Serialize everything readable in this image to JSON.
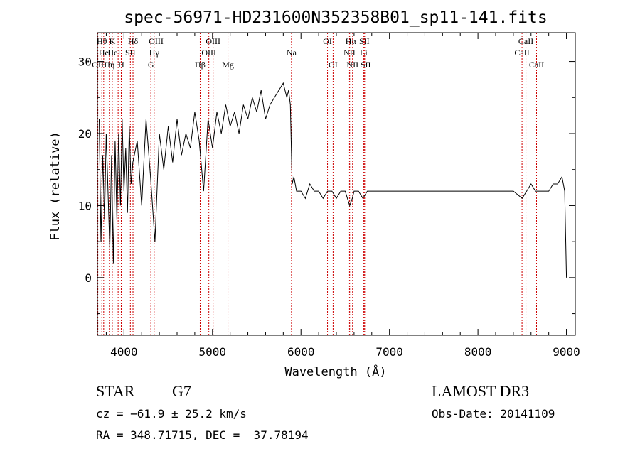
{
  "chart_data": {
    "type": "line",
    "title": "spec-56971-HD231600N352358B01_sp11-141.fits",
    "xlabel": "Wavelength (Å)",
    "ylabel": "Flux (relative)",
    "xlim": [
      3700,
      9100
    ],
    "ylim": [
      -8,
      34
    ],
    "xticks": [
      {
        "value": 4000,
        "label": "4000"
      },
      {
        "value": 5000,
        "label": "5000"
      },
      {
        "value": 6000,
        "label": "6000"
      },
      {
        "value": 7000,
        "label": "7000"
      },
      {
        "value": 8000,
        "label": "8000"
      },
      {
        "value": 9000,
        "label": "9000"
      }
    ],
    "yticks": [
      {
        "value": 0,
        "label": "0"
      },
      {
        "value": 10,
        "label": "10"
      },
      {
        "value": 20,
        "label": "20"
      },
      {
        "value": 30,
        "label": "30"
      }
    ],
    "line_color": "#000000",
    "marker_color": "#cc0000",
    "series": [
      {
        "x": [
          3720,
          3740,
          3760,
          3780,
          3800,
          3820,
          3840,
          3860,
          3880,
          3900,
          3920,
          3940,
          3960,
          3980,
          4000,
          4020,
          4040,
          4060,
          4080,
          4100,
          4150,
          4200,
          4250,
          4300,
          4350,
          4400,
          4450,
          4500,
          4550,
          4600,
          4650,
          4700,
          4750,
          4800,
          4850,
          4900,
          4950,
          5000,
          5050,
          5100,
          5150,
          5200,
          5250,
          5300,
          5350,
          5400,
          5450,
          5500,
          5550,
          5600,
          5650,
          5700,
          5750,
          5800,
          5820,
          5840,
          5860,
          5880,
          5900,
          5920,
          5950,
          6000,
          6050,
          6100,
          6150,
          6200,
          6250,
          6300,
          6350,
          6400,
          6450,
          6500,
          6550,
          6580,
          6600,
          6650,
          6700,
          6750,
          6800,
          6850,
          6900,
          6950,
          7000,
          7100,
          7200,
          7300,
          7400,
          7500,
          7600,
          7700,
          7800,
          7900,
          8000,
          8100,
          8200,
          8300,
          8400,
          8500,
          8550,
          8600,
          8650,
          8700,
          8750,
          8800,
          8850,
          8900,
          8950,
          8980,
          9000
        ],
        "y": [
          22,
          5,
          17,
          8,
          20,
          12,
          4,
          17,
          2,
          19,
          8,
          20,
          10,
          22,
          12,
          18,
          9,
          21,
          13,
          16,
          19,
          10,
          22,
          14,
          5,
          20,
          15,
          21,
          16,
          22,
          17,
          20,
          18,
          23,
          19,
          12,
          22,
          18,
          23,
          20,
          24,
          21,
          23,
          20,
          24,
          22,
          25,
          23,
          26,
          22,
          24,
          25,
          26,
          27,
          26,
          25,
          26,
          24,
          13,
          14,
          12,
          12,
          11,
          13,
          12,
          12,
          11,
          12,
          12,
          11,
          12,
          12,
          10,
          11,
          12,
          12,
          11,
          12,
          12,
          12,
          12,
          12,
          12,
          12,
          12,
          12,
          12,
          12,
          12,
          12,
          12,
          12,
          12,
          12,
          12,
          12,
          12,
          11,
          12,
          13,
          12,
          12,
          12,
          12,
          13,
          13,
          14,
          12,
          0
        ]
      }
    ],
    "line_markers": [
      {
        "wl": 3705,
        "label": "OII",
        "row": 3
      },
      {
        "wl": 3750,
        "label": "Hθ",
        "row": 1
      },
      {
        "wl": 3771,
        "label": "He",
        "row": 2
      },
      {
        "wl": 3835,
        "label": "Hη",
        "row": 3
      },
      {
        "wl": 3868,
        "label": "K",
        "row": 1
      },
      {
        "wl": 3889,
        "label": "HeI",
        "row": 2
      },
      {
        "wl": 3934,
        "label": "",
        "row": 0
      },
      {
        "wl": 3969,
        "label": "H",
        "row": 3
      },
      {
        "wl": 4072,
        "label": "SII",
        "row": 2
      },
      {
        "wl": 4102,
        "label": "Hδ",
        "row": 1
      },
      {
        "wl": 4304,
        "label": "G",
        "row": 3
      },
      {
        "wl": 4341,
        "label": "Hγ",
        "row": 2
      },
      {
        "wl": 4363,
        "label": "OIII",
        "row": 1
      },
      {
        "wl": 4861,
        "label": "Hβ",
        "row": 3
      },
      {
        "wl": 4959,
        "label": "OIII",
        "row": 2
      },
      {
        "wl": 5007,
        "label": "OIII",
        "row": 1
      },
      {
        "wl": 5175,
        "label": "Mg",
        "row": 3
      },
      {
        "wl": 5893,
        "label": "Na",
        "row": 2
      },
      {
        "wl": 6300,
        "label": "OI",
        "row": 1
      },
      {
        "wl": 6363,
        "label": "OI",
        "row": 3
      },
      {
        "wl": 6548,
        "label": "NII",
        "row": 2
      },
      {
        "wl": 6563,
        "label": "Hα",
        "row": 1
      },
      {
        "wl": 6583,
        "label": "NII",
        "row": 3
      },
      {
        "wl": 6708,
        "label": "Li",
        "row": 2
      },
      {
        "wl": 6716,
        "label": "SII",
        "row": 1
      },
      {
        "wl": 6731,
        "label": "SII",
        "row": 3
      },
      {
        "wl": 8498,
        "label": "CaII",
        "row": 2
      },
      {
        "wl": 8542,
        "label": "CaII",
        "row": 1
      },
      {
        "wl": 8662,
        "label": "CaII",
        "row": 3
      }
    ]
  },
  "info": {
    "object_class": "STAR",
    "subclass": "G7",
    "survey": "LAMOST DR3",
    "cz": "cz = −61.9 ± 25.2 km/s",
    "obs_date": "Obs-Date: 20141109",
    "coords": "RA = 348.71715, DEC =  37.78194"
  }
}
